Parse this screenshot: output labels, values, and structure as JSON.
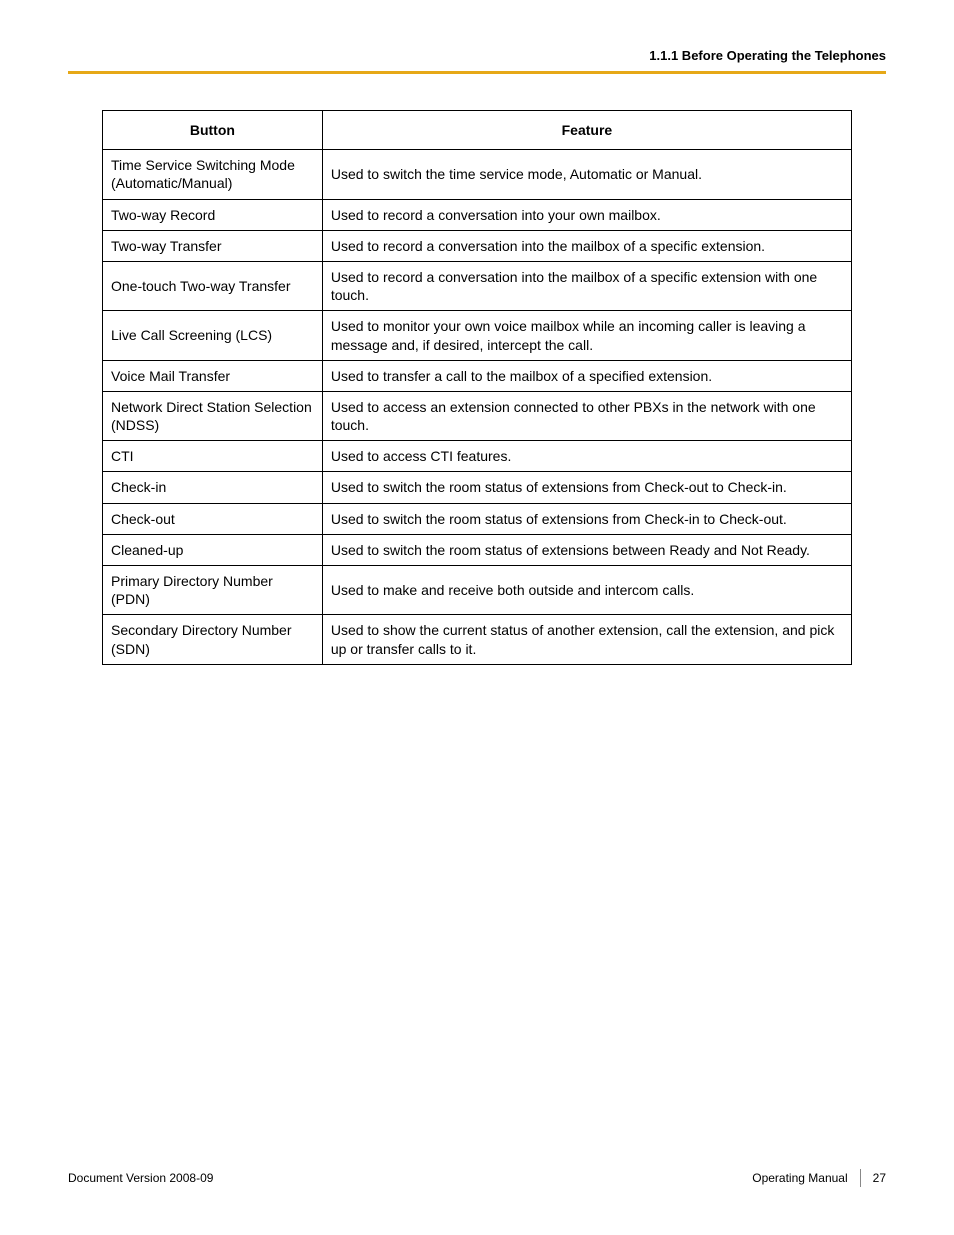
{
  "header": {
    "section": "1.1.1 Before Operating the Telephones"
  },
  "accent_color": "#e6a817",
  "table": {
    "columns": {
      "button": "Button",
      "feature": "Feature"
    },
    "rows": [
      {
        "button": "Time Service Switching Mode (Automatic/Manual)",
        "feature": "Used to switch the time service mode, Automatic or Manual."
      },
      {
        "button": "Two-way Record",
        "feature": "Used to record a conversation into your own mailbox."
      },
      {
        "button": "Two-way Transfer",
        "feature": "Used to record a conversation into the mailbox of a specific extension."
      },
      {
        "button": "One-touch Two-way Transfer",
        "feature": "Used to record a conversation into the mailbox of a specific extension with one touch."
      },
      {
        "button": "Live Call Screening (LCS)",
        "feature": "Used to monitor your own voice mailbox while an incoming caller is leaving a message and, if desired, intercept the call."
      },
      {
        "button": "Voice Mail Transfer",
        "feature": "Used to transfer a call to the mailbox of a specified extension."
      },
      {
        "button": "Network Direct Station Selection (NDSS)",
        "feature": "Used to access an extension connected to other PBXs in the network with one touch."
      },
      {
        "button": "CTI",
        "feature": "Used to access CTI features."
      },
      {
        "button": "Check-in",
        "feature": "Used to switch the room status of extensions from Check-out to Check-in."
      },
      {
        "button": "Check-out",
        "feature": "Used to switch the room status of extensions from Check-in to Check-out."
      },
      {
        "button": "Cleaned-up",
        "feature": "Used to switch the room status of extensions between Ready and Not Ready."
      },
      {
        "button": "Primary Directory Number (PDN)",
        "feature": "Used to make and receive both outside and intercom calls."
      },
      {
        "button": "Secondary Directory Number (SDN)",
        "feature": "Used to show the current status of another extension, call the extension, and pick up or transfer calls to it."
      }
    ]
  },
  "footer": {
    "doc_version_label": "Document Version  2008-09",
    "manual_label": "Operating Manual",
    "page_number": "27"
  }
}
